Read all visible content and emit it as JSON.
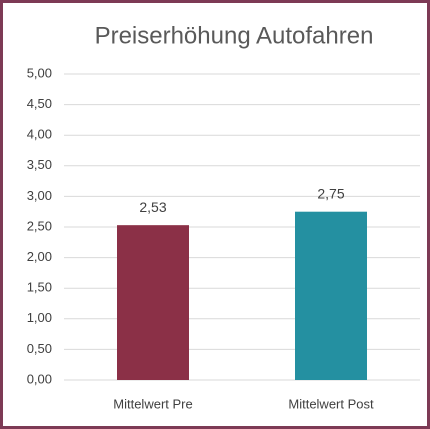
{
  "chart_data": {
    "type": "bar",
    "title": "Preiserhöhung Autofahren",
    "categories": [
      "Mittelwert Pre",
      "Mittelwert Post"
    ],
    "values": [
      2.53,
      2.75
    ],
    "value_labels": [
      "2,53",
      "2,75"
    ],
    "colors": [
      "#8b3047",
      "#2490a1"
    ],
    "ylim": [
      0,
      5
    ],
    "yticks": [
      {
        "value": 0,
        "label": "0,00"
      },
      {
        "value": 0.5,
        "label": "0,50"
      },
      {
        "value": 1,
        "label": "1,00"
      },
      {
        "value": 1.5,
        "label": "1,50"
      },
      {
        "value": 2,
        "label": "2,00"
      },
      {
        "value": 2.5,
        "label": "2,50"
      },
      {
        "value": 3,
        "label": "3,00"
      },
      {
        "value": 3.5,
        "label": "3,50"
      },
      {
        "value": 4,
        "label": "4,00"
      },
      {
        "value": 4.5,
        "label": "4,50"
      },
      {
        "value": 5,
        "label": "5,00"
      }
    ],
    "grid": true
  }
}
